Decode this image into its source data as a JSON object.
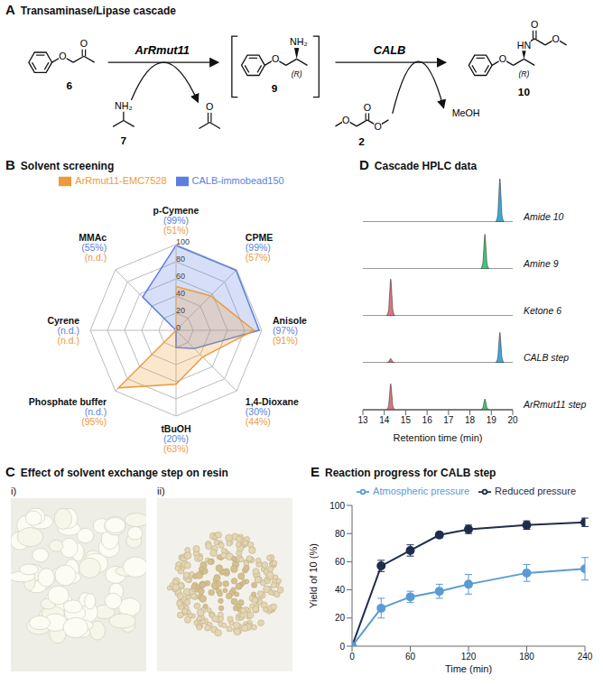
{
  "scheme": {
    "panel": "A",
    "title": "Transaminase/Lipase cascade",
    "enzymes": [
      "ArRmut11",
      "CALB"
    ],
    "compounds": {
      "ketone": "6",
      "amine_donor": "7",
      "amine": "9",
      "acyl_donor": "2",
      "amide": "10"
    },
    "byproduct": "MeOH",
    "atoms": {
      "oxygen": "O",
      "amine": "NH₂",
      "amide_nh": "HN",
      "stereo": "(R)"
    }
  },
  "photos": {
    "panel": "C",
    "title": "Effect of solvent exchange step on resin",
    "images": [
      "i)",
      "ii)"
    ]
  },
  "chart_data": [
    {
      "type": "radar",
      "panel": "B",
      "title": "Solvent screening",
      "categories": [
        "p-Cymene",
        "CPME",
        "Anisole",
        "1,4-Dioxane",
        "tBuOH",
        "Phosphate buffer",
        "Cyrene",
        "MMAc"
      ],
      "ylim": [
        0,
        100
      ],
      "yticks": [
        0,
        20,
        40,
        60,
        80,
        100
      ],
      "grid": true,
      "legend": "top",
      "data_labels": true,
      "series": [
        {
          "name": "CALB-immobead150",
          "color": "#5b7fe0",
          "values": [
            99,
            99,
            97,
            30,
            20,
            0,
            0,
            55
          ],
          "value_labels": [
            "(99%)",
            "(99%)",
            "(97%)",
            "(30%)",
            "(20%)",
            "(n.d.)",
            "(n.d.)",
            "(55%)"
          ]
        },
        {
          "name": "ArRmut11-EMC7528",
          "color": "#ee9a3a",
          "values": [
            51,
            57,
            91,
            44,
            63,
            95,
            0,
            0
          ],
          "value_labels": [
            "(51%)",
            "(57%)",
            "(91%)",
            "(44%)",
            "(63%)",
            "(95%)",
            "(n.d.)",
            "(n.d.)"
          ]
        }
      ]
    },
    {
      "type": "line",
      "panel": "D",
      "title": "Cascade HPLC data",
      "xlabel": "Retention time (min)",
      "xlim": [
        13,
        20
      ],
      "xticks": [
        13,
        14,
        15,
        16,
        17,
        18,
        19,
        20
      ],
      "ylim": [
        0,
        100
      ],
      "tick_labels": "x",
      "series": [
        {
          "name": "Amide 10",
          "peaks": [
            {
              "color": "#2b9fd6",
              "x": [
                19.2,
                19.3,
                19.35,
                19.4,
                19.45,
                19.5,
                19.6
              ],
              "values": [
                0,
                15,
                60,
                100,
                60,
                15,
                0
              ]
            }
          ]
        },
        {
          "name": "Amine 9",
          "peaks": [
            {
              "color": "#2fbf71",
              "x": [
                18.5,
                18.6,
                18.65,
                18.7,
                18.75,
                18.8,
                18.9
              ],
              "values": [
                0,
                12,
                48,
                80,
                48,
                12,
                0
              ]
            }
          ]
        },
        {
          "name": "Ketone 6",
          "peaks": [
            {
              "color": "#d9666f",
              "x": [
                14.1,
                14.2,
                14.25,
                14.3,
                14.35,
                14.4,
                14.5
              ],
              "values": [
                0,
                13,
                51,
                85,
                51,
                13,
                0
              ]
            }
          ]
        },
        {
          "name": "CALB step",
          "peaks": [
            {
              "color": "#d9666f",
              "x": [
                14.1,
                14.2,
                14.25,
                14.3,
                14.35,
                14.4,
                14.5
              ],
              "values": [
                0,
                2,
                6,
                10,
                6,
                2,
                0
              ]
            },
            {
              "color": "#2b9fd6",
              "x": [
                19.2,
                19.3,
                19.35,
                19.4,
                19.45,
                19.5,
                19.6
              ],
              "values": [
                0,
                11,
                42,
                70,
                42,
                11,
                0
              ]
            }
          ]
        },
        {
          "name": "ArRmut11 step",
          "peaks": [
            {
              "color": "#d9666f",
              "x": [
                14.1,
                14.2,
                14.25,
                14.3,
                14.35,
                14.4,
                14.5
              ],
              "values": [
                0,
                9,
                36,
                60,
                36,
                9,
                0
              ]
            },
            {
              "color": "#2fbf71",
              "x": [
                18.5,
                18.6,
                18.65,
                18.7,
                18.75,
                18.8,
                18.9
              ],
              "values": [
                0,
                4,
                15,
                25,
                15,
                4,
                0
              ]
            }
          ]
        }
      ]
    },
    {
      "type": "line",
      "panel": "E",
      "title": "Reaction progress for CALB step",
      "xlabel": "Time (min)",
      "ylabel": "Yield of 10 (%)",
      "x": [
        0,
        30,
        60,
        90,
        120,
        180,
        240
      ],
      "xlim": [
        0,
        240
      ],
      "xticks": [
        0,
        60,
        120,
        180,
        240
      ],
      "ylim": [
        0,
        100
      ],
      "yticks": [
        0,
        20,
        40,
        60,
        80,
        100
      ],
      "legend": "top",
      "series": [
        {
          "name": "Reduced pressure",
          "color": "#1f2d4d",
          "marker": "circle",
          "values": [
            0,
            57,
            68,
            79,
            83,
            86,
            88
          ],
          "error": [
            0,
            4,
            4,
            2,
            3,
            3,
            3
          ]
        },
        {
          "name": "Atmospheric pressure",
          "color": "#5b9bd5",
          "marker": "circle",
          "values": [
            0,
            27,
            35,
            39,
            44,
            52,
            55
          ],
          "error": [
            0,
            7,
            4,
            5,
            7,
            6,
            8
          ]
        }
      ]
    }
  ]
}
